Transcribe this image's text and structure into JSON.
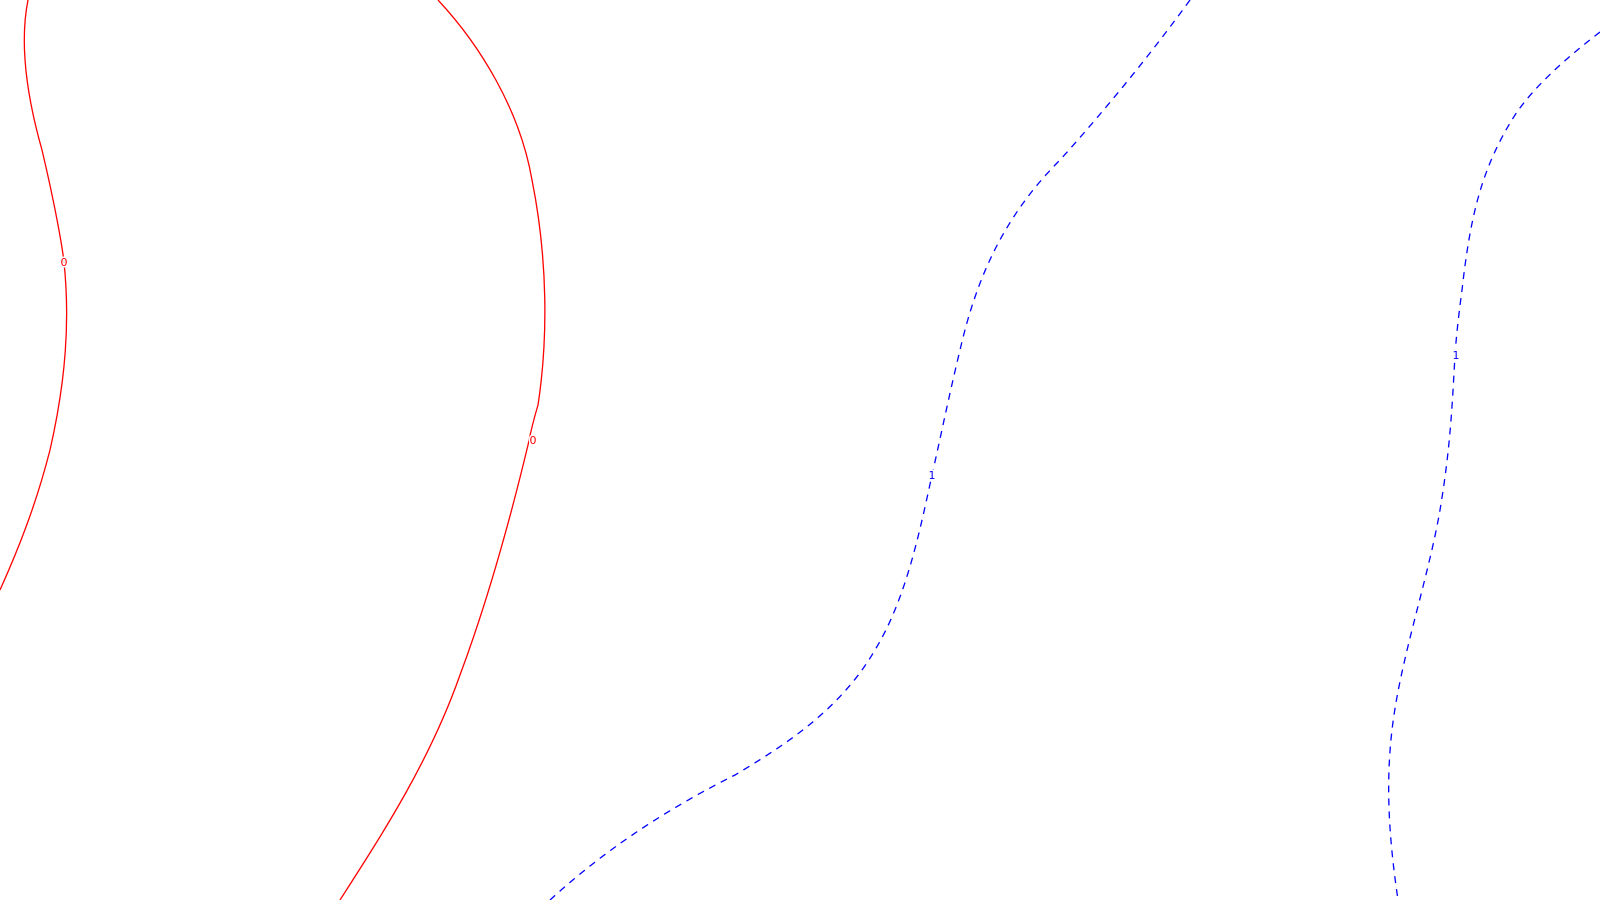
{
  "map": {
    "background_color": "#ffffff",
    "contours": [
      {
        "id": "zero-left",
        "level_label": "0",
        "color": "#ff0000",
        "style": "solid"
      },
      {
        "id": "zero-center",
        "level_label": "0",
        "color": "#ff0000",
        "style": "solid"
      },
      {
        "id": "one-middle",
        "level_label": "1",
        "color": "#0000ff",
        "style": "dashed"
      },
      {
        "id": "one-right",
        "level_label": "1",
        "color": "#0000ff",
        "style": "dashed"
      }
    ]
  }
}
